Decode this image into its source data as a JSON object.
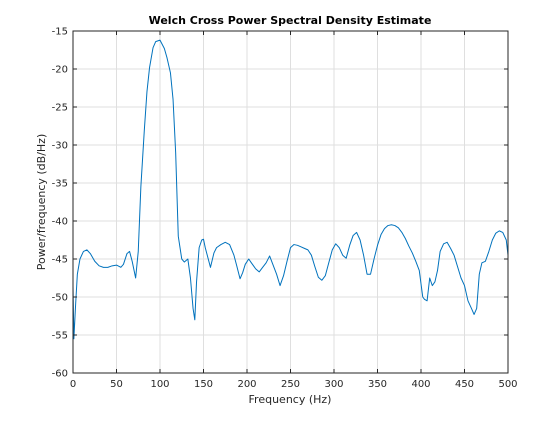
{
  "chart_data": {
    "type": "line",
    "title": "Welch Cross Power Spectral Density Estimate",
    "xlabel": "Frequency (Hz)",
    "ylabel": "Power/frequency (dB/Hz)",
    "xlim": [
      0,
      500
    ],
    "ylim": [
      -60,
      -15
    ],
    "xticks": [
      0,
      50,
      100,
      150,
      200,
      250,
      300,
      350,
      400,
      450,
      500
    ],
    "yticks": [
      -60,
      -55,
      -50,
      -45,
      -40,
      -35,
      -30,
      -25,
      -20,
      -15
    ],
    "xtick_labels": [
      "0",
      "50",
      "100",
      "150",
      "200",
      "250",
      "300",
      "350",
      "400",
      "450",
      "500"
    ],
    "ytick_labels": [
      "-60",
      "-55",
      "-50",
      "-45",
      "-40",
      "-35",
      "-30",
      "-25",
      "-20",
      "-15"
    ],
    "grid": true,
    "line_color": "#0072bd",
    "series": [
      {
        "x": [
          0,
          1,
          3,
          5,
          8,
          12,
          16,
          20,
          25,
          30,
          35,
          40,
          45,
          50,
          55,
          58,
          62,
          65,
          68,
          72,
          75,
          78,
          82,
          85,
          88,
          92,
          95,
          100,
          105,
          108,
          112,
          115,
          118,
          121,
          125,
          128,
          132,
          135,
          138,
          140,
          142,
          145,
          148,
          150,
          152,
          155,
          158,
          162,
          165,
          170,
          175,
          180,
          185,
          188,
          192,
          195,
          198,
          202,
          205,
          210,
          214,
          218,
          222,
          226,
          230,
          234,
          238,
          242,
          246,
          250,
          254,
          258,
          262,
          266,
          270,
          274,
          278,
          282,
          286,
          290,
          294,
          298,
          302,
          306,
          310,
          314,
          318,
          322,
          326,
          330,
          334,
          338,
          342,
          346,
          350,
          354,
          358,
          362,
          366,
          370,
          374,
          378,
          382,
          386,
          390,
          394,
          398,
          402,
          404,
          407,
          410,
          413,
          416,
          419,
          422,
          426,
          430,
          434,
          438,
          442,
          446,
          450,
          454,
          458,
          461,
          464,
          467,
          470,
          474,
          478,
          482,
          486,
          490,
          494,
          498,
          500
        ],
        "y": [
          -48.5,
          -55.5,
          -51,
          -47,
          -45,
          -44,
          -43.8,
          -44.3,
          -45.3,
          -45.9,
          -46.1,
          -46.1,
          -45.9,
          -45.8,
          -46.1,
          -45.7,
          -44.3,
          -44,
          -45.3,
          -47.5,
          -44,
          -35.5,
          -28,
          -23,
          -19.8,
          -17.2,
          -16.4,
          -16.2,
          -17.3,
          -18.5,
          -20.5,
          -24,
          -31,
          -42,
          -45,
          -45.4,
          -45,
          -47.5,
          -51.5,
          -53,
          -48,
          -43.5,
          -42.5,
          -42.4,
          -43.5,
          -44.8,
          -46.1,
          -44.2,
          -43.5,
          -43.1,
          -42.8,
          -43.1,
          -44.5,
          -45.8,
          -47.6,
          -46.8,
          -45.7,
          -45,
          -45.5,
          -46.3,
          -46.7,
          -46.1,
          -45.5,
          -44.6,
          -45.8,
          -47,
          -48.5,
          -47.2,
          -45.3,
          -43.5,
          -43.1,
          -43.2,
          -43.4,
          -43.6,
          -43.8,
          -44.5,
          -46,
          -47.4,
          -47.8,
          -47.2,
          -45.5,
          -43.8,
          -43,
          -43.5,
          -44.5,
          -44.9,
          -43.2,
          -41.9,
          -41.5,
          -42.5,
          -44.5,
          -47,
          -47,
          -45,
          -43.2,
          -41.8,
          -41,
          -40.6,
          -40.5,
          -40.6,
          -40.9,
          -41.5,
          -42.3,
          -43.3,
          -44.2,
          -45.3,
          -46.5,
          -50,
          -50.3,
          -50.5,
          -47.5,
          -48.5,
          -48,
          -46.5,
          -44,
          -43,
          -42.8,
          -43.6,
          -44.5,
          -46,
          -47.5,
          -48.5,
          -50.5,
          -51.5,
          -52.3,
          -51.5,
          -47,
          -45.5,
          -45.3,
          -44,
          -42.5,
          -41.6,
          -41.3,
          -41.5,
          -42.5,
          -44.5
        ]
      }
    ]
  }
}
